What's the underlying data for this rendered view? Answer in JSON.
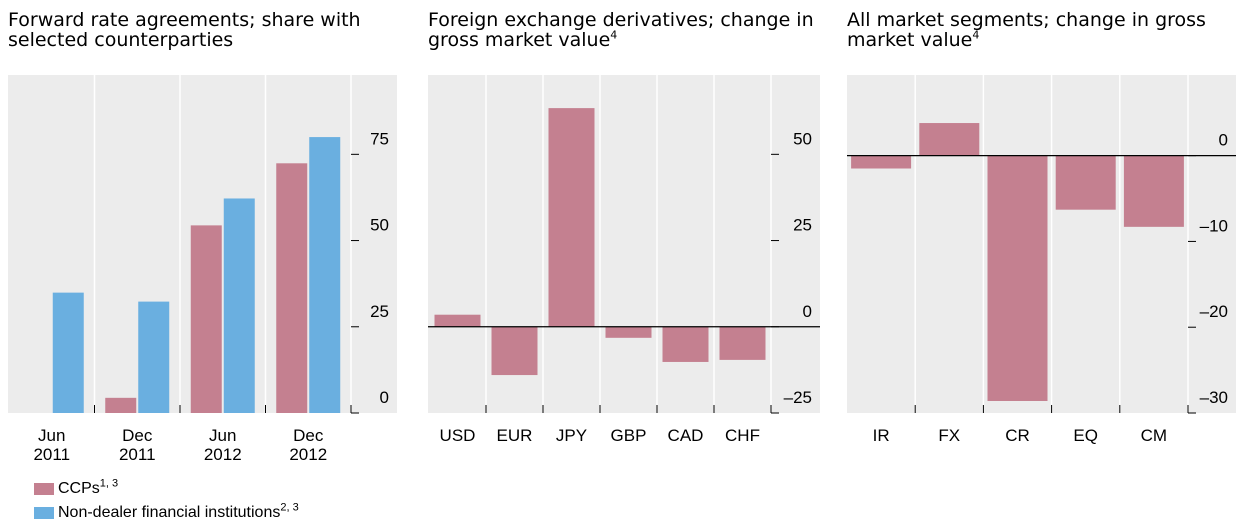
{
  "chart_data": [
    {
      "type": "bar",
      "title": "Forward rate agreements; share with selected counterparties",
      "categories": [
        "Jun 2011",
        "Dec 2011",
        "Jun 2012",
        "Dec 2012"
      ],
      "series": [
        {
          "name": "CCPs",
          "name_note": "1, 3",
          "color": "#c48090",
          "values": [
            null,
            4.4,
            54.4,
            72.4
          ]
        },
        {
          "name": "Non-dealer financial institutions",
          "name_note": "2, 3",
          "color": "#6aafe0",
          "values": [
            34.9,
            32.3,
            62.2,
            80
          ]
        }
      ],
      "ylim": [
        0,
        98
      ],
      "yticks": [
        0,
        25,
        50,
        75
      ]
    },
    {
      "type": "bar",
      "title": "Foreign exchange derivatives; change in gross market value",
      "title_note": "4",
      "categories": [
        "USD",
        "EUR",
        "JPY",
        "GBP",
        "CAD",
        "CHF"
      ],
      "series": [
        {
          "color": "#c48090",
          "values": [
            3.5,
            -14,
            63.4,
            -3.2,
            -10.2,
            -9.6
          ]
        }
      ],
      "ylim": [
        -25,
        73
      ],
      "yticks": [
        {
          "value": -25,
          "label": "–25"
        },
        0,
        25,
        50
      ]
    },
    {
      "type": "bar",
      "title": "All market segments; change in gross market value",
      "title_note": "4",
      "categories": [
        "IR",
        "FX",
        "CR",
        "EQ",
        "CM"
      ],
      "series": [
        {
          "color": "#c48090",
          "values": [
            -1.5,
            3.8,
            -28.6,
            -6.3,
            -8.3
          ]
        }
      ],
      "ylim": [
        -30,
        9.4
      ],
      "yticks": [
        {
          "value": -30,
          "label": "–30"
        },
        {
          "value": -20,
          "label": "–20"
        },
        {
          "value": -10,
          "label": "–10"
        },
        0
      ]
    }
  ]
}
